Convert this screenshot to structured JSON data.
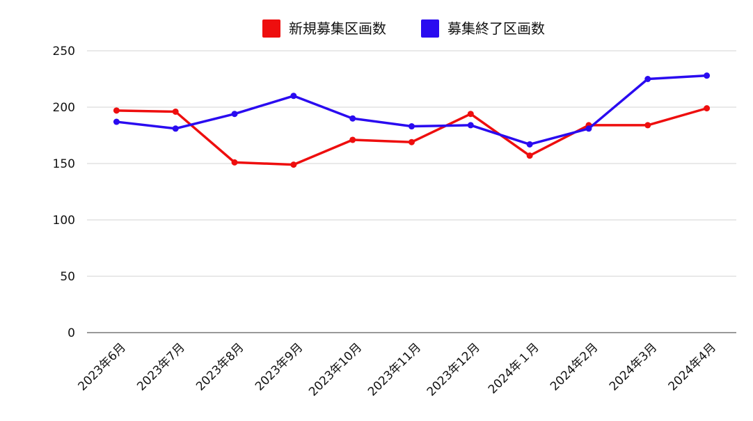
{
  "chart_data": {
    "type": "line",
    "categories": [
      "2023年6月",
      "2023年7月",
      "2023年8月",
      "2023年9月",
      "2023年10月",
      "2023年11月",
      "2023年12月",
      "2024年１月",
      "2024年2月",
      "2024年3月",
      "2024年4月"
    ],
    "series": [
      {
        "name": "新規募集区画数",
        "color": "#ee0e0e",
        "values": [
          197,
          196,
          151,
          149,
          171,
          169,
          194,
          157,
          184,
          184,
          199
        ]
      },
      {
        "name": "募集終了区画数",
        "color": "#2a0bf0",
        "values": [
          187,
          181,
          194,
          210,
          190,
          183,
          184,
          167,
          181,
          225,
          228
        ]
      }
    ],
    "ylim": [
      0,
      250
    ],
    "yticks": [
      "0",
      "50",
      "100",
      "150",
      "200",
      "250"
    ],
    "grid": true,
    "legend": "top-center"
  }
}
